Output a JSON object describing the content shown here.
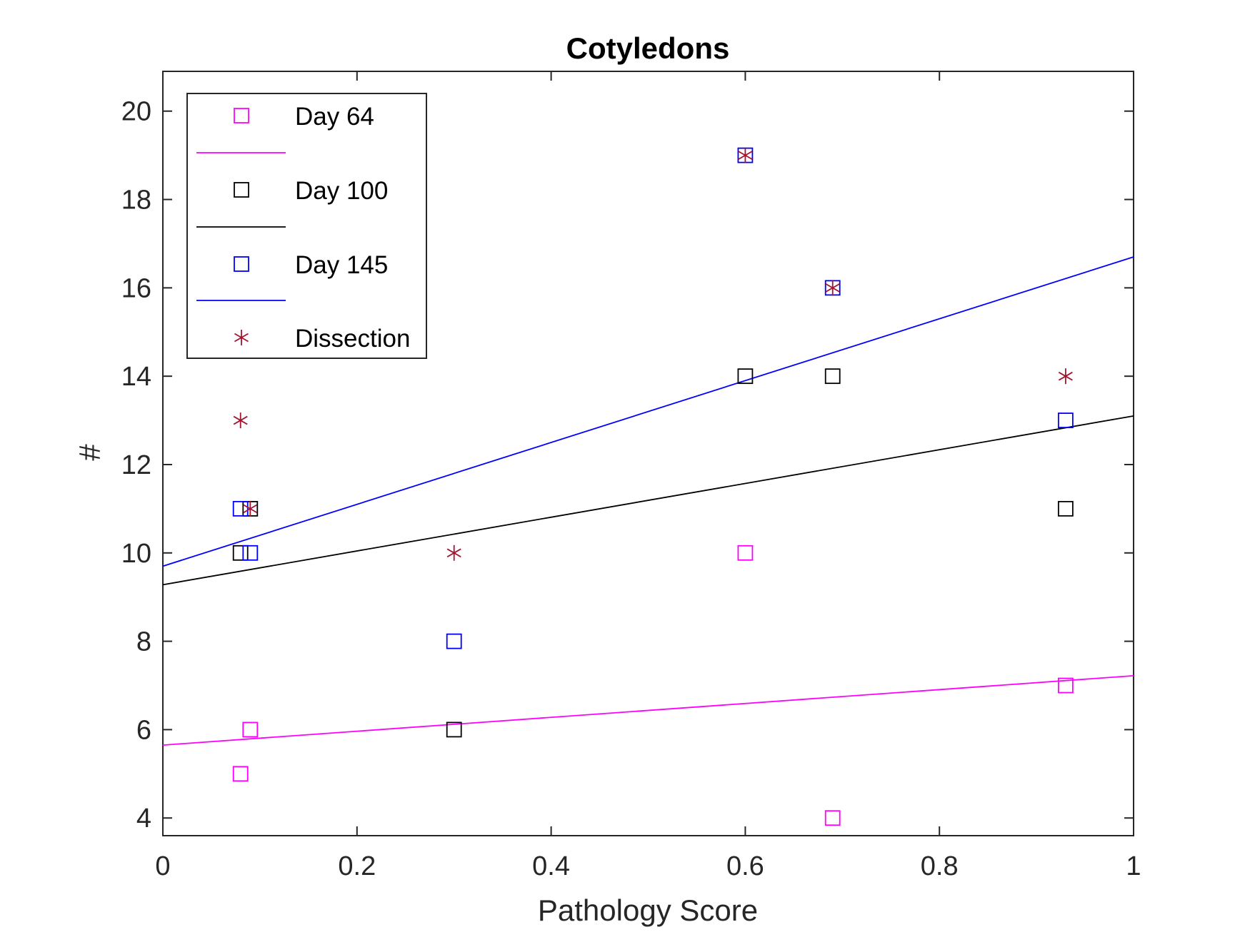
{
  "chart_data": {
    "type": "scatter",
    "title": "Cotyledons",
    "xlabel": "Pathology Score",
    "ylabel": "#",
    "xlim": [
      0,
      1
    ],
    "ylim": [
      3.6,
      20.9
    ],
    "xticks": [
      0,
      0.2,
      0.4,
      0.6,
      0.8,
      1
    ],
    "xtick_labels": [
      "0",
      "0.2",
      "0.4",
      "0.6",
      "0.8",
      "1"
    ],
    "yticks": [
      4,
      6,
      8,
      10,
      12,
      14,
      16,
      18,
      20
    ],
    "ytick_labels": [
      "4",
      "6",
      "8",
      "10",
      "12",
      "14",
      "16",
      "18",
      "20"
    ],
    "grid": false,
    "legend_position": "top-left",
    "series": [
      {
        "name": "Day 64",
        "marker": "square",
        "color": "#ff00ff",
        "points": [
          [
            0.08,
            5
          ],
          [
            0.09,
            6
          ],
          [
            0.6,
            10
          ],
          [
            0.69,
            4
          ],
          [
            0.93,
            7
          ]
        ],
        "fit": {
          "x": [
            0,
            1
          ],
          "y": [
            5.65,
            7.22
          ]
        }
      },
      {
        "name": "Day 100",
        "marker": "square",
        "color": "#000000",
        "points": [
          [
            0.08,
            10
          ],
          [
            0.09,
            11
          ],
          [
            0.3,
            6
          ],
          [
            0.6,
            14
          ],
          [
            0.69,
            14
          ],
          [
            0.93,
            11
          ]
        ],
        "fit": {
          "x": [
            0,
            1
          ],
          "y": [
            9.28,
            13.1
          ]
        }
      },
      {
        "name": "Day 145",
        "marker": "square",
        "color": "#0000ff",
        "points": [
          [
            0.08,
            11
          ],
          [
            0.09,
            10
          ],
          [
            0.3,
            8
          ],
          [
            0.6,
            19
          ],
          [
            0.69,
            16
          ],
          [
            0.93,
            13
          ]
        ],
        "fit": {
          "x": [
            0,
            1
          ],
          "y": [
            9.7,
            16.7
          ]
        }
      },
      {
        "name": "Dissection",
        "marker": "asterisk",
        "color": "#a2142f",
        "points": [
          [
            0.08,
            13
          ],
          [
            0.09,
            11
          ],
          [
            0.3,
            10
          ],
          [
            0.6,
            19
          ],
          [
            0.69,
            16
          ],
          [
            0.93,
            14
          ]
        ]
      }
    ],
    "legend": [
      "Day 64",
      "Day 100",
      "Day 145",
      "Dissection"
    ]
  }
}
